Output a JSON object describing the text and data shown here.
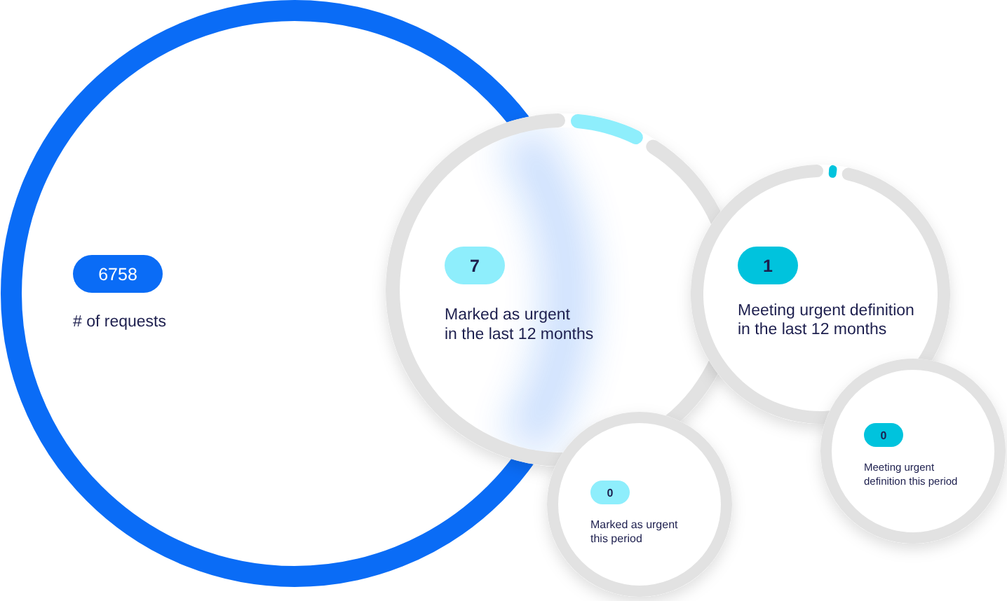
{
  "chart_data": {
    "type": "other",
    "categories": [
      "# of requests",
      "Marked as urgent in the last 12 months",
      "Meeting urgent definition in the last 12 months",
      "Marked as urgent this period",
      "Meeting urgent definition this period"
    ],
    "values": [
      6758,
      7,
      1,
      0,
      0
    ],
    "colors": [
      "#0a6cf6",
      "#8eeefc",
      "#00c3dd",
      "#8eeefc",
      "#00c3dd"
    ],
    "data_labels": true
  }
}
